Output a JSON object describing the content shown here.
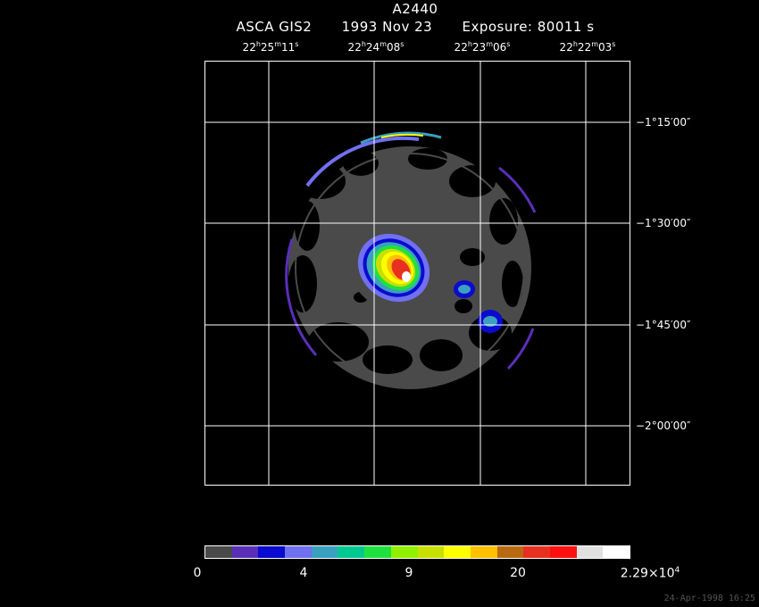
{
  "title": "A2440",
  "subtitle": {
    "instrument": "ASCA GIS2",
    "date": "1993 Nov 23",
    "exposure": "Exposure: 80011 s"
  },
  "ra_ticks": [
    {
      "h": "22",
      "m": "25",
      "s": "11"
    },
    {
      "h": "22",
      "m": "24",
      "s": "08"
    },
    {
      "h": "22",
      "m": "23",
      "s": "06"
    },
    {
      "h": "22",
      "m": "22",
      "s": "03"
    }
  ],
  "dec_ticks": [
    "−1°15′00″",
    "−1°30′00″",
    "−1°45′00″",
    "−2°00′00″"
  ],
  "colorbar": {
    "colors": [
      "#4a4a4a",
      "#5a2fb8",
      "#0a0ad0",
      "#7070f0",
      "#3aa0c0",
      "#00c890",
      "#20e040",
      "#90f000",
      "#c8e000",
      "#ffff00",
      "#ffc000",
      "#b86a10",
      "#e83020",
      "#ff1010",
      "#e0e0e0",
      "#ffffff"
    ],
    "labels": [
      {
        "text": "0"
      },
      {
        "text": "4"
      },
      {
        "text": "9"
      },
      {
        "text": "20"
      },
      {
        "text": "2.29×10",
        "sup": "4"
      }
    ]
  },
  "footer": "24-Apr-1998 16:25"
}
